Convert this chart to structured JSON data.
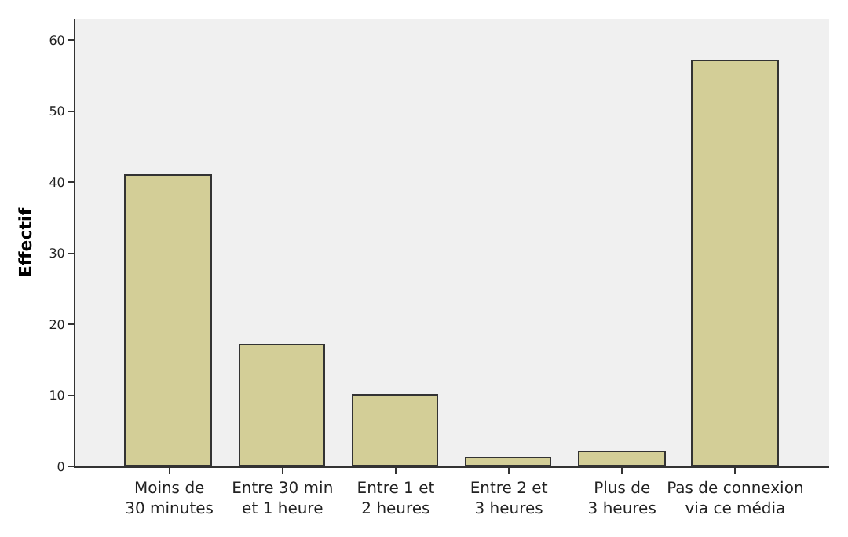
{
  "chart_data": {
    "type": "bar",
    "ylabel": "Effectif",
    "categories": [
      "Moins de\n30 minutes",
      "Entre 30 min\net 1 heure",
      "Entre 1 et\n2 heures",
      "Entre 2 et\n3 heures",
      "Plus de\n3 heures",
      "Pas de connexion\nvia ce média"
    ],
    "values": [
      41,
      17,
      10,
      1,
      2,
      57
    ],
    "color": "#d3ce97",
    "ylim": [
      0,
      63
    ],
    "yticks": [
      0,
      10,
      20,
      30,
      40,
      50,
      60
    ],
    "grid": false
  }
}
